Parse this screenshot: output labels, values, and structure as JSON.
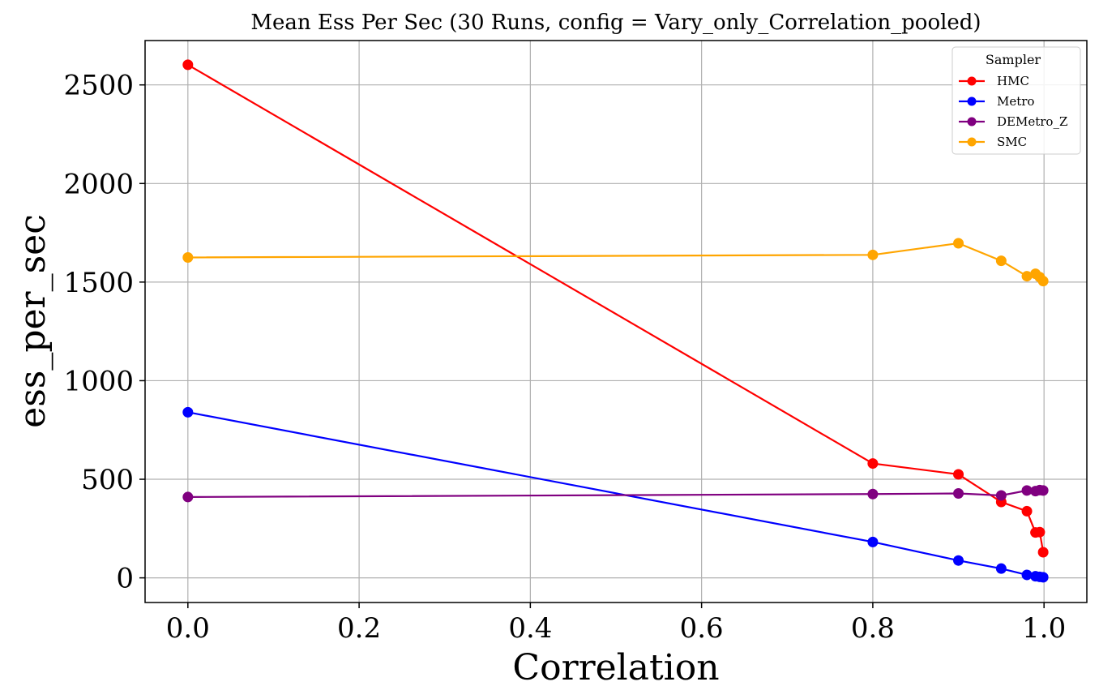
{
  "chart_data": {
    "type": "line",
    "title": "Mean Ess Per Sec (30 Runs, config = Vary_only_Correlation_pooled)",
    "xlabel": "Correlation",
    "ylabel": "ess_per_sec",
    "xlim": [
      -0.05,
      1.05
    ],
    "ylim": [
      -125,
      2725
    ],
    "xticks": [
      0.0,
      0.2,
      0.4,
      0.6,
      0.8,
      1.0
    ],
    "xtick_labels": [
      "0.0",
      "0.2",
      "0.4",
      "0.6",
      "0.8",
      "1.0"
    ],
    "yticks": [
      0,
      500,
      1000,
      1500,
      2000,
      2500
    ],
    "ytick_labels": [
      "0",
      "500",
      "1000",
      "1500",
      "2000",
      "2500"
    ],
    "grid": true,
    "legend": {
      "title": "Sampler",
      "placement": "upper right"
    },
    "x": [
      0.0,
      0.8,
      0.9,
      0.95,
      0.98,
      0.99,
      0.995,
      0.999
    ],
    "series": [
      {
        "name": "HMC",
        "color": "#ff0000",
        "values": [
          2602,
          580,
          525,
          385,
          338,
          230,
          232,
          130
        ]
      },
      {
        "name": "Metro",
        "color": "#0000ff",
        "values": [
          840,
          182,
          88,
          47,
          15,
          8,
          5,
          3
        ]
      },
      {
        "name": "DEMetro_Z",
        "color": "#800080",
        "values": [
          410,
          425,
          428,
          418,
          443,
          440,
          445,
          443
        ]
      },
      {
        "name": "SMC",
        "color": "#ffa500",
        "values": [
          1625,
          1638,
          1697,
          1608,
          1530,
          1542,
          1525,
          1505
        ]
      }
    ]
  }
}
